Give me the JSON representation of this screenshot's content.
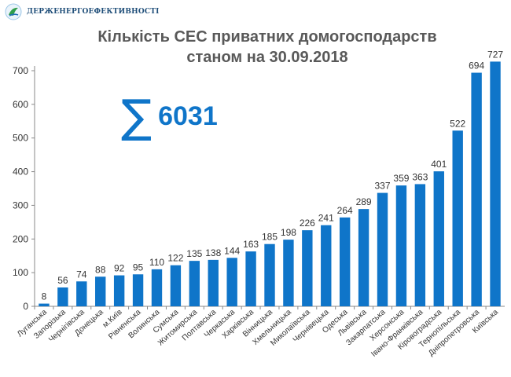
{
  "header": {
    "logo_text": "ДЕРЖЕНЕРГОЕФЕКТИВНОСТІ"
  },
  "colors": {
    "bar": "#0f75c9",
    "axis": "#888888",
    "title": "#595959",
    "accent": "#0f75c9"
  },
  "summary": {
    "symbol": "∑",
    "total": "6031"
  },
  "chart_data": {
    "type": "bar",
    "title": "Кількість СЕС приватних домогосподарств",
    "subtitle": "станом на 30.09.2018",
    "xlabel": "",
    "ylabel": "",
    "ylim": [
      0,
      700
    ],
    "yticks": [
      0,
      100,
      200,
      300,
      400,
      500,
      600,
      700
    ],
    "grid": false,
    "categories": [
      "Луганська",
      "Запорізька",
      "Чернігівська",
      "Донецька",
      "м.Київ",
      "Рівненська",
      "Волинська",
      "Сумська",
      "Житомирська",
      "Полтавська",
      "Черкаська",
      "Харківська",
      "Вінницька",
      "Хмельницька",
      "Миколаївська",
      "Чернівецька",
      "Одеська",
      "Львівська",
      "Закарпатська",
      "Херсонська",
      "Івано-Франківська",
      "Кіровоградська",
      "Тернопільська",
      "Дніпропетровська",
      "Київська"
    ],
    "values": [
      8,
      56,
      74,
      88,
      92,
      95,
      110,
      122,
      135,
      138,
      144,
      163,
      185,
      198,
      226,
      241,
      264,
      289,
      337,
      359,
      363,
      401,
      522,
      694,
      727
    ]
  }
}
